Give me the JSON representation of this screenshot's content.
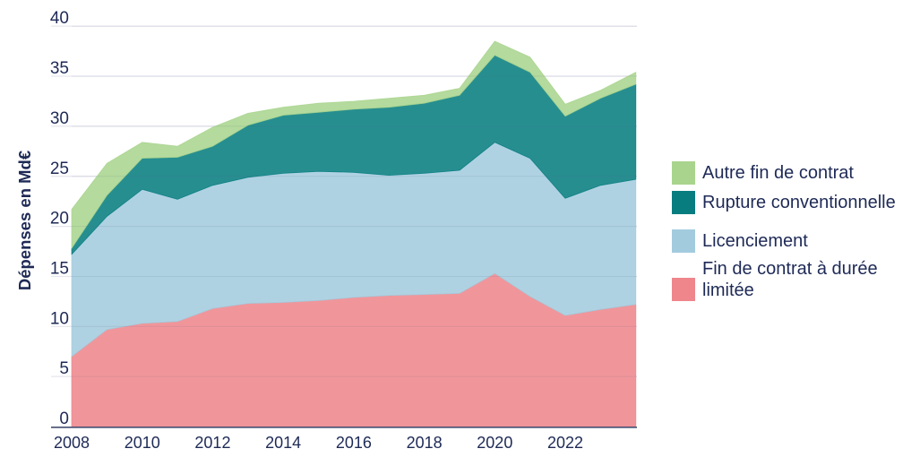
{
  "chart": {
    "type": "area",
    "stacked": true,
    "title": "",
    "ylabel": "Dépenses en Md€",
    "xlabel": "",
    "ylim": [
      0,
      40
    ],
    "y_ticks": [
      0,
      5,
      10,
      15,
      20,
      25,
      30,
      35,
      40
    ],
    "x_tick_labels": [
      "2008",
      "2010",
      "2012",
      "2014",
      "2016",
      "2018",
      "2020",
      "2022"
    ],
    "x_tick_years": [
      2008,
      2010,
      2012,
      2014,
      2016,
      2018,
      2020,
      2022
    ],
    "years": [
      2008,
      2009,
      2010,
      2011,
      2012,
      2013,
      2014,
      2015,
      2016,
      2017,
      2018,
      2019,
      2020,
      2021,
      2022,
      2023,
      2024
    ],
    "grid": true,
    "legend_position": "right",
    "colors": {
      "text": "#1e2a56",
      "gridline": "#e5e5ee",
      "baseline": "#454f70",
      "background": "#ffffff"
    },
    "area_fill_opacity": 0.87,
    "series": [
      {
        "id": "fin-de-contrat-a-duree-limitee",
        "label": "Fin de contrat à durée limitée",
        "color": "#ee868c",
        "values": [
          7.0,
          9.7,
          10.3,
          10.5,
          11.8,
          12.3,
          12.4,
          12.6,
          12.9,
          13.1,
          13.2,
          13.3,
          15.3,
          13.0,
          11.1,
          11.7,
          12.2
        ]
      },
      {
        "id": "licenciement",
        "label": "Licenciement",
        "color": "#a3cbde",
        "values": [
          10.2,
          11.3,
          13.4,
          12.2,
          12.3,
          12.6,
          12.9,
          12.9,
          12.5,
          12.0,
          12.1,
          12.3,
          13.1,
          13.8,
          11.7,
          12.4,
          12.5
        ]
      },
      {
        "id": "rupture-conventionnelle",
        "label": "Rupture conventionnelle",
        "color": "#077d80",
        "values": [
          0.6,
          2.1,
          3.1,
          4.2,
          3.9,
          5.2,
          5.8,
          5.9,
          6.3,
          6.8,
          7.0,
          7.5,
          8.7,
          8.6,
          8.2,
          8.7,
          9.5
        ]
      },
      {
        "id": "autre-fin-de-contrat",
        "label": "Autre fin de contrat",
        "color": "#a9d48e",
        "values": [
          3.9,
          3.2,
          1.6,
          1.1,
          1.9,
          1.2,
          0.8,
          0.9,
          0.8,
          0.9,
          0.8,
          0.7,
          1.4,
          1.5,
          1.2,
          0.8,
          1.2
        ]
      }
    ],
    "legend_order": [
      3,
      2,
      1,
      0
    ]
  }
}
